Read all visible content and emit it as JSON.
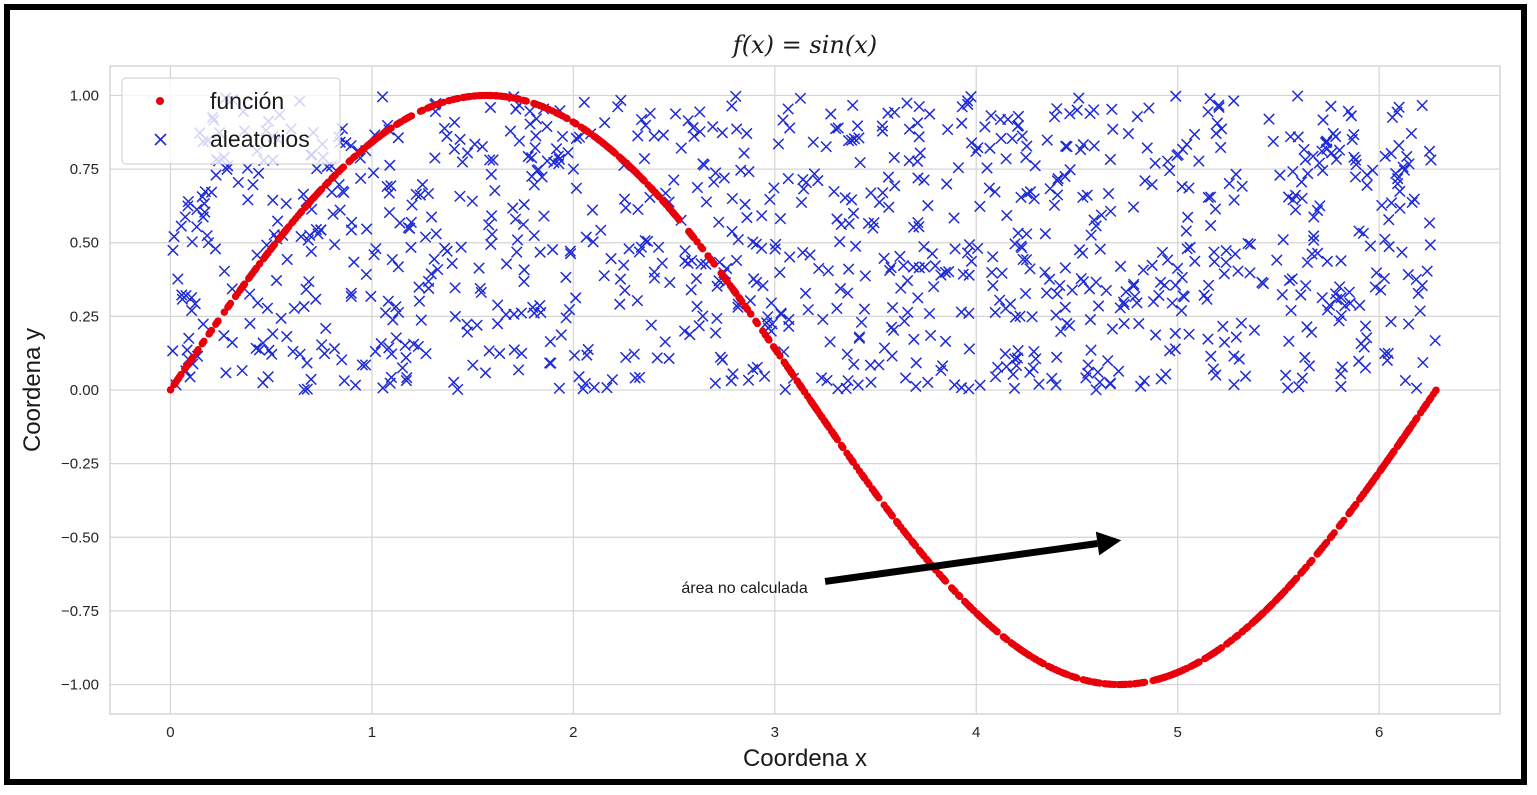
{
  "chart_data": {
    "type": "scatter",
    "title": "f(x) = sin(x)",
    "xlabel": "Coordena x",
    "ylabel": "Coordena y",
    "xlim": [
      -0.3,
      6.6
    ],
    "ylim": [
      -1.1,
      1.1
    ],
    "x_ticks": [
      0,
      1,
      2,
      3,
      4,
      5,
      6
    ],
    "y_ticks": [
      -1.0,
      -0.75,
      -0.5,
      -0.25,
      0.0,
      0.25,
      0.5,
      0.75,
      1.0
    ],
    "x_tick_labels": [
      "0",
      "1",
      "2",
      "3",
      "4",
      "5",
      "6"
    ],
    "y_tick_labels": [
      "−1.00",
      "−0.75",
      "−0.50",
      "−0.25",
      "0.00",
      "0.25",
      "0.50",
      "0.75",
      "1.00"
    ],
    "grid": true,
    "legend_position": "top-left",
    "series": [
      {
        "name": "función",
        "marker": "dot",
        "color": "#e8000b",
        "function": "sin(x)",
        "x_range": [
          0,
          6.283
        ]
      },
      {
        "name": "aleatorios",
        "marker": "x",
        "color": "#1f2bd6",
        "count": 1000,
        "x_range": [
          0,
          6.283
        ],
        "y_range": [
          0,
          1
        ]
      }
    ],
    "annotation": {
      "text": "área no calculada",
      "text_xy": [
        2.85,
        -0.69
      ],
      "arrow_from": [
        3.25,
        -0.65
      ],
      "arrow_to": [
        4.72,
        -0.51
      ]
    }
  }
}
